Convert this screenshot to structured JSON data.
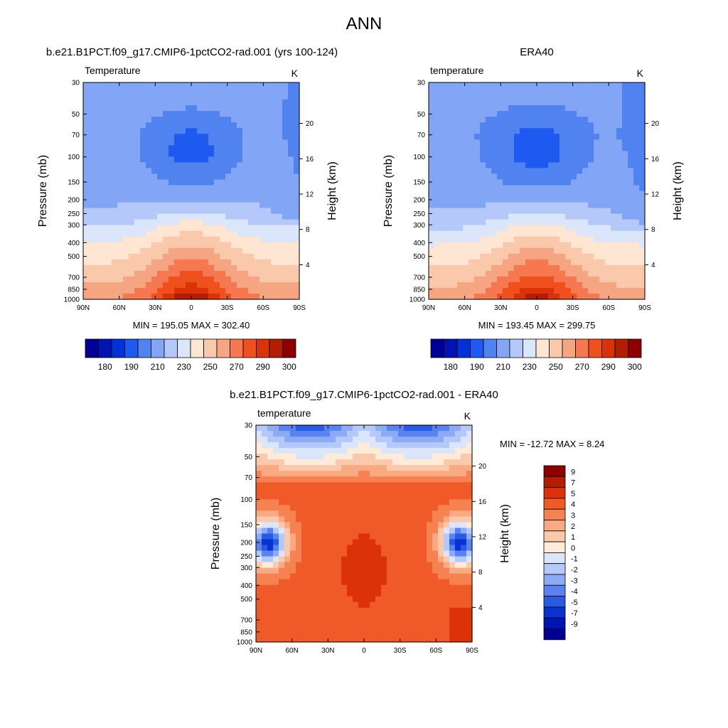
{
  "page": {
    "title": "ANN"
  },
  "chart_data": [
    {
      "id": "model",
      "type": "heatmap",
      "title": "b.e21.B1PCT.f09_g17.CMIP6-1pctCO2-rad.001 (yrs 100-124)",
      "field_label": "Temperature",
      "units": "K",
      "ylabel": "Pressure (mb)",
      "y2label": "Height (km)",
      "x_ticks": [
        "90N",
        "60N",
        "30N",
        "0",
        "30S",
        "60S",
        "90S"
      ],
      "y_ticks": [
        "30",
        "50",
        "70",
        "100",
        "150",
        "200",
        "250",
        "300",
        "400",
        "500",
        "700",
        "850",
        "1000"
      ],
      "y2_ticks": [
        "20",
        "16",
        "12",
        "8",
        "4"
      ],
      "min_max_text": "MIN = 195.05  MAX = 302.40",
      "min": 195.05,
      "max": 302.4,
      "legend": {
        "colors": [
          "#000096",
          "#0014b4",
          "#0032dc",
          "#1e5af0",
          "#5082f0",
          "#82a5f5",
          "#b4c8fa",
          "#dce6fa",
          "#ffe6d2",
          "#fac8aa",
          "#f5a582",
          "#f57850",
          "#f0501e",
          "#dc320a",
          "#b41e00",
          "#8c0000"
        ],
        "labels": [
          "180",
          "190",
          "210",
          "230",
          "250",
          "270",
          "290",
          "300"
        ]
      }
    },
    {
      "id": "obs",
      "type": "heatmap",
      "title": "ERA40",
      "field_label": "temperature",
      "units": "K",
      "ylabel": "Pressure (mb)",
      "y2label": "Height (km)",
      "x_ticks": [
        "90N",
        "60N",
        "30N",
        "0",
        "30S",
        "60S",
        "90S"
      ],
      "y_ticks": [
        "30",
        "50",
        "70",
        "100",
        "150",
        "200",
        "250",
        "300",
        "400",
        "500",
        "700",
        "850",
        "1000"
      ],
      "y2_ticks": [
        "20",
        "16",
        "12",
        "8",
        "4"
      ],
      "min_max_text": "MIN = 193.45  MAX = 299.75",
      "min": 193.45,
      "max": 299.75,
      "legend": {
        "colors": [
          "#000096",
          "#0014b4",
          "#0032dc",
          "#1e5af0",
          "#5082f0",
          "#82a5f5",
          "#b4c8fa",
          "#dce6fa",
          "#ffe6d2",
          "#fac8aa",
          "#f5a582",
          "#f57850",
          "#f0501e",
          "#dc320a",
          "#b41e00",
          "#8c0000"
        ],
        "labels": [
          "180",
          "190",
          "210",
          "230",
          "250",
          "270",
          "290",
          "300"
        ]
      }
    },
    {
      "id": "diff",
      "type": "heatmap",
      "title": "b.e21.B1PCT.f09_g17.CMIP6-1pctCO2-rad.001 - ERA40",
      "field_label": "temperature",
      "units": "K",
      "ylabel": "Pressure (mb)",
      "y2label": "Height (km)",
      "x_ticks": [
        "90N",
        "60N",
        "30N",
        "0",
        "30S",
        "60S",
        "90S"
      ],
      "y_ticks": [
        "30",
        "50",
        "70",
        "100",
        "150",
        "200",
        "250",
        "300",
        "400",
        "500",
        "700",
        "850",
        "1000"
      ],
      "y2_ticks": [
        "20",
        "16",
        "12",
        "8",
        "4"
      ],
      "min_max_text": "MIN = -12.72  MAX =   8.24",
      "min": -12.72,
      "max": 8.24,
      "legend": {
        "colors": [
          "#8c0000",
          "#b41e00",
          "#dc320a",
          "#f05a28",
          "#f58250",
          "#faaa82",
          "#fac8aa",
          "#ffebd7",
          "#dce6fa",
          "#b4c8fa",
          "#8caaf5",
          "#5a82f0",
          "#285ae6",
          "#0a32d2",
          "#0014b4",
          "#000096"
        ],
        "labels": [
          "9",
          "7",
          "5",
          "4",
          "3",
          "2",
          "1",
          "0",
          "-1",
          "-2",
          "-3",
          "-4",
          "-5",
          "-7",
          "-9"
        ]
      }
    }
  ]
}
